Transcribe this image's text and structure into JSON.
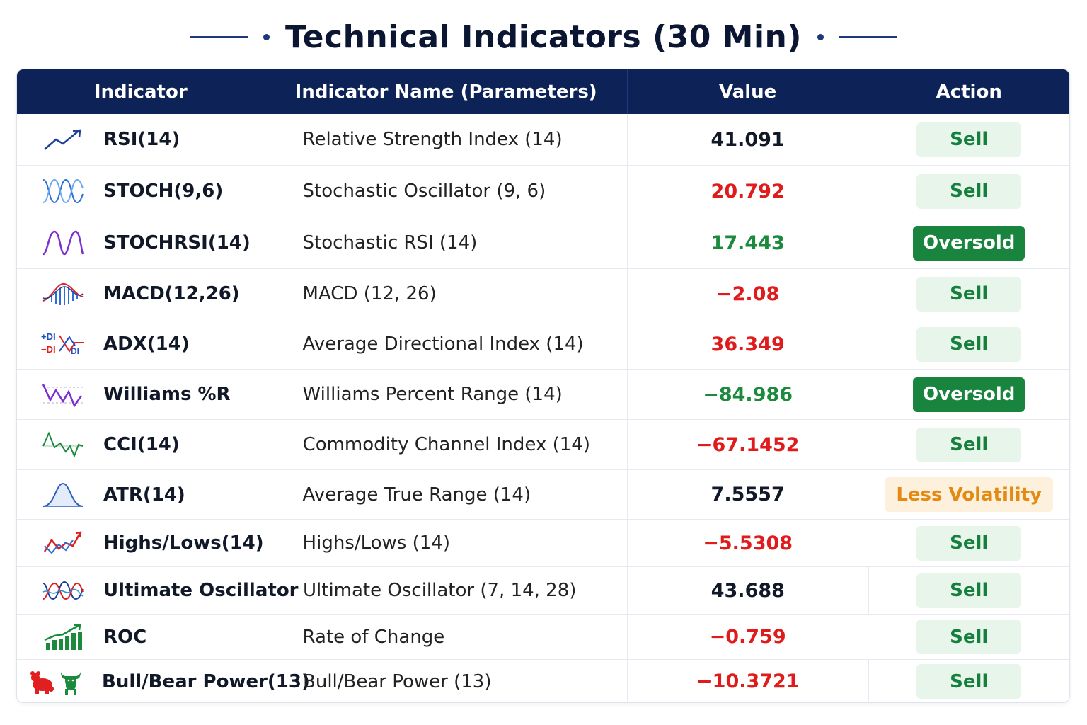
{
  "title": "Technical Indicators (30 Min)",
  "columns": [
    "Indicator",
    "Indicator Name (Parameters)",
    "Value",
    "Action"
  ],
  "colors": {
    "header_bg": "#0d2257",
    "sell_bg": "#e8f5ea",
    "sell_text": "#15803d",
    "oversold_bg": "#18843e",
    "volatility_bg": "#fdf1dd",
    "volatility_text": "#e38a12",
    "negative": "#e01b1b",
    "positive": "#1b8a3c"
  },
  "rows": [
    {
      "icon": "trend-up-icon",
      "indicator": "RSI(14)",
      "name": "Relative Strength Index (14)",
      "value": "41.091",
      "value_color": "dark",
      "action": "Sell",
      "action_style": "sell"
    },
    {
      "icon": "stochastic-wave-icon",
      "indicator": "STOCH(9,6)",
      "name": "Stochastic Oscillator (9, 6)",
      "value": "20.792",
      "value_color": "red",
      "action": "Sell",
      "action_style": "sell"
    },
    {
      "icon": "stochrsi-wave-icon",
      "indicator": "STOCHRSI(14)",
      "name": "Stochastic RSI (14)",
      "value": "17.443",
      "value_color": "green",
      "action": "Oversold",
      "action_style": "oversold"
    },
    {
      "icon": "macd-histogram-icon",
      "indicator": "MACD(12,26)",
      "name": "MACD (12, 26)",
      "value": "−2.08",
      "value_color": "red",
      "action": "Sell",
      "action_style": "sell"
    },
    {
      "icon": "adx-di-icon",
      "indicator": "ADX(14)",
      "name": "Average Directional Index (14)",
      "value": "36.349",
      "value_color": "red",
      "action": "Sell",
      "action_style": "sell"
    },
    {
      "icon": "williams-wave-icon",
      "indicator": "Williams %R",
      "name": "Williams Percent Range (14)",
      "value": "−84.986",
      "value_color": "green",
      "action": "Oversold",
      "action_style": "oversold"
    },
    {
      "icon": "cci-wave-icon",
      "indicator": "CCI(14)",
      "name": "Commodity Channel Index (14)",
      "value": "−67.1452",
      "value_color": "red",
      "action": "Sell",
      "action_style": "sell"
    },
    {
      "icon": "bell-curve-icon",
      "indicator": "ATR(14)",
      "name": "Average True Range (14)",
      "value": "7.5557",
      "value_color": "dark",
      "action": "Less Volatility",
      "action_style": "volatility"
    },
    {
      "icon": "highs-lows-icon",
      "indicator": "Highs/Lows(14)",
      "name": "Highs/Lows (14)",
      "value": "−5.5308",
      "value_color": "red",
      "action": "Sell",
      "action_style": "sell"
    },
    {
      "icon": "ultimate-wave-icon",
      "indicator": "Ultimate Oscillator",
      "name": "Ultimate Oscillator (7, 14, 28)",
      "value": "43.688",
      "value_color": "dark",
      "action": "Sell",
      "action_style": "sell"
    },
    {
      "icon": "bar-chart-up-icon",
      "indicator": "ROC",
      "name": "Rate of Change",
      "value": "−0.759",
      "value_color": "red",
      "action": "Sell",
      "action_style": "sell"
    },
    {
      "icon": "bull-bear-icon",
      "indicator": "Bull/Bear Power(13)",
      "name": "Bull/Bear Power (13)",
      "value": "−10.3721",
      "value_color": "red",
      "action": "Sell",
      "action_style": "sell"
    }
  ],
  "icon_text": {
    "plus_di": "+DI",
    "minus_di": "−DI",
    "di": "DI"
  }
}
